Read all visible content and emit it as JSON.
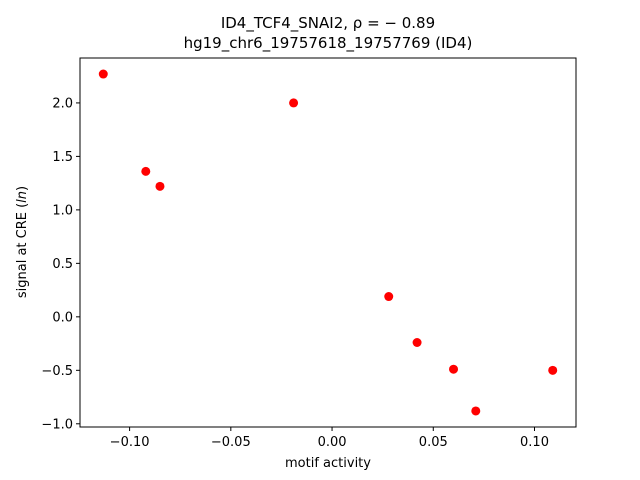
{
  "chart_data": {
    "type": "scatter",
    "title": "ID4_TCF4_SNAI2, ρ = − 0.89",
    "subtitle": "hg19_chr6_19757618_19757769 (ID4)",
    "xlabel": "motif activity",
    "ylabel": "signal at CRE (ln)",
    "xlim": [
      -0.1245,
      0.1205
    ],
    "ylim": [
      -1.03,
      2.42
    ],
    "xticks": [
      -0.1,
      -0.05,
      0.0,
      0.05,
      0.1
    ],
    "xtick_labels": [
      "−0.10",
      "−0.05",
      "0.00",
      "0.05",
      "0.10"
    ],
    "yticks": [
      -1.0,
      -0.5,
      0.0,
      0.5,
      1.0,
      1.5,
      2.0
    ],
    "ytick_labels": [
      "−1.0",
      "−0.5",
      "0.0",
      "0.5",
      "1.0",
      "1.5",
      "2.0"
    ],
    "grid": false,
    "marker_color": "#ff0000",
    "points": [
      {
        "x": -0.113,
        "y": 2.27
      },
      {
        "x": -0.092,
        "y": 1.36
      },
      {
        "x": -0.085,
        "y": 1.22
      },
      {
        "x": -0.019,
        "y": 2.0
      },
      {
        "x": 0.028,
        "y": 0.19
      },
      {
        "x": 0.042,
        "y": -0.24
      },
      {
        "x": 0.06,
        "y": -0.49
      },
      {
        "x": 0.071,
        "y": -0.88
      },
      {
        "x": 0.109,
        "y": -0.5
      }
    ]
  }
}
